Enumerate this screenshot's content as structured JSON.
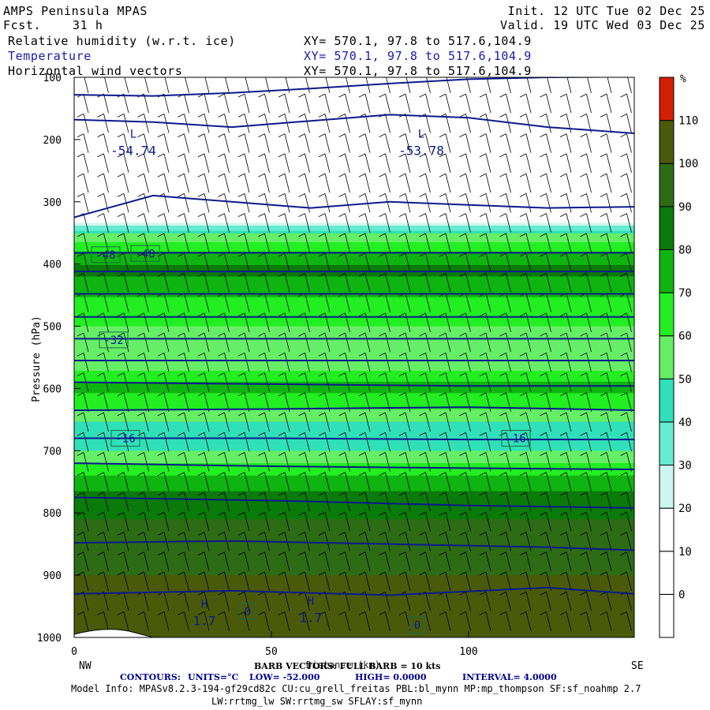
{
  "header": {
    "left_title": "AMPS Peninsula MPAS",
    "fcst_label": "Fcst.",
    "fcst_value": "31 h",
    "init": "Init. 12 UTC Tue 02 Dec 25",
    "valid": "Valid. 19 UTC Wed 03 Dec 25",
    "fields": [
      {
        "name": "Relative humidity (w.r.t. ice)",
        "range": "XY= 570.1, 97.8 to 517.6,104.9"
      },
      {
        "name": "Temperature",
        "range": "XY= 570.1, 97.8 to 517.6,104.9"
      },
      {
        "name": "Horizontal wind vectors",
        "range": "XY= 570.1, 97.8 to 517.6,104.9"
      }
    ]
  },
  "colors": {
    "contour_line": "#0a1a8c",
    "label_box": "#1a6a4a",
    "terrain": "#ffffff",
    "barbs": "#000000"
  },
  "chart_data": {
    "type": "heatmap",
    "title": "AMPS Peninsula MPAS",
    "ylabel": "Pressure (hPa)",
    "xlabel": "Distance (km)",
    "x_start_label": "NW",
    "x_end_label": "SE",
    "xlim": [
      0,
      142
    ],
    "ylim": [
      1000,
      100
    ],
    "xticks": [
      0,
      50,
      100
    ],
    "yticks": [
      100,
      200,
      300,
      400,
      500,
      600,
      700,
      800,
      900,
      1000
    ],
    "colorbar": {
      "unit": "%",
      "levels": [
        0,
        10,
        20,
        30,
        40,
        50,
        60,
        70,
        80,
        90,
        100,
        110
      ],
      "colors": [
        "#ffffff",
        "#ffffff",
        "#ffffff",
        "#ccf7ee",
        "#66ecd0",
        "#30e0b8",
        "#66ee66",
        "#22ee22",
        "#10b410",
        "#0a7a0a",
        "#2d6b15",
        "#4a5a0a",
        "#d42000"
      ]
    },
    "rh_layers": [
      {
        "p": 100,
        "rh": 10
      },
      {
        "p": 250,
        "rh": 10
      },
      {
        "p": 330,
        "rh": 15
      },
      {
        "p": 355,
        "rh": 55
      },
      {
        "p": 385,
        "rh": 72
      },
      {
        "p": 410,
        "rh": 85
      },
      {
        "p": 440,
        "rh": 72
      },
      {
        "p": 480,
        "rh": 65
      },
      {
        "p": 520,
        "rh": 55
      },
      {
        "p": 560,
        "rh": 50
      },
      {
        "p": 595,
        "rh": 75
      },
      {
        "p": 620,
        "rh": 65
      },
      {
        "p": 660,
        "rh": 45
      },
      {
        "p": 700,
        "rh": 50
      },
      {
        "p": 740,
        "rh": 70
      },
      {
        "p": 790,
        "rh": 88
      },
      {
        "p": 850,
        "rh": 95
      },
      {
        "p": 900,
        "rh": 100
      },
      {
        "p": 1000,
        "rh": 104
      }
    ],
    "temperature_contours": {
      "units": "°C",
      "low": -52.0,
      "high": 0.0,
      "interval": 4.0,
      "lines": [
        {
          "x": [
            0,
            20,
            40,
            60,
            80,
            100,
            120,
            142
          ],
          "p": [
            128,
            130,
            125,
            118,
            110,
            103,
            100,
            99
          ]
        },
        {
          "x": [
            0,
            20,
            40,
            60,
            80,
            100,
            120,
            142
          ],
          "p": [
            168,
            172,
            180,
            170,
            160,
            165,
            180,
            190
          ]
        },
        {
          "x": [
            0,
            20,
            40,
            60,
            80,
            100,
            120,
            142
          ],
          "p": [
            325,
            290,
            300,
            310,
            300,
            305,
            310,
            308
          ]
        },
        {
          "x": [
            0,
            142
          ],
          "p": [
            382,
            382
          ]
        },
        {
          "x": [
            0,
            142
          ],
          "p": [
            412,
            412
          ]
        },
        {
          "x": [
            0,
            142
          ],
          "p": [
            448,
            448
          ]
        },
        {
          "x": [
            0,
            142
          ],
          "p": [
            485,
            485
          ]
        },
        {
          "x": [
            0,
            142
          ],
          "p": [
            520,
            520
          ]
        },
        {
          "x": [
            0,
            142
          ],
          "p": [
            555,
            555
          ]
        },
        {
          "x": [
            0,
            50,
            100,
            142
          ],
          "p": [
            590,
            593,
            596,
            596
          ]
        },
        {
          "x": [
            0,
            50,
            100,
            142
          ],
          "p": [
            635,
            633,
            630,
            635
          ]
        },
        {
          "x": [
            0,
            50,
            100,
            142
          ],
          "p": [
            680,
            680,
            682,
            682
          ]
        },
        {
          "x": [
            0,
            50,
            100,
            142
          ],
          "p": [
            720,
            725,
            728,
            730
          ]
        },
        {
          "x": [
            0,
            50,
            100,
            142
          ],
          "p": [
            775,
            780,
            788,
            792
          ]
        },
        {
          "x": [
            0,
            40,
            80,
            120,
            142
          ],
          "p": [
            848,
            845,
            850,
            855,
            860
          ]
        },
        {
          "x": [
            0,
            40,
            80,
            120,
            142
          ],
          "p": [
            930,
            925,
            932,
            920,
            930
          ]
        }
      ],
      "labels": [
        {
          "x": 8,
          "p": 385,
          "text": "-48"
        },
        {
          "x": 18,
          "p": 383,
          "text": "-48"
        },
        {
          "x": 10,
          "p": 522,
          "text": "-32"
        },
        {
          "x": 13,
          "p": 680,
          "text": "-16"
        },
        {
          "x": 112,
          "p": 680,
          "text": "-16"
        },
        {
          "x": 44,
          "p": 958,
          "text": "0"
        },
        {
          "x": 87,
          "p": 980,
          "text": "0"
        }
      ],
      "extrema": [
        {
          "x": 15,
          "p": 215,
          "symbol": "L",
          "value": "-54.74"
        },
        {
          "x": 88,
          "p": 215,
          "symbol": "L",
          "value": "-53.78"
        },
        {
          "x": 33,
          "p": 970,
          "symbol": "H",
          "value": "1.7"
        },
        {
          "x": 60,
          "p": 965,
          "symbol": "H",
          "value": "1.7"
        }
      ]
    }
  },
  "footer": {
    "barb_info": "BARB VECTORS: FULL BARB = 10 kts",
    "axis_xlabel": "Distance (km)",
    "contours_label": "CONTOURS:",
    "units": "UNITS=°C",
    "low": "LOW= -52.000",
    "high": "HIGH= 0.0000",
    "interval": "INTERVAL= 4.0000",
    "model_info_1": "Model Info: MPASv8.2.3-194-gf29cd82c CU:cu_grell_freitas PBL:bl_mynn MP:mp_thompson SF:sf_noahmp 2.7",
    "model_info_2": "LW:rrtmg_lw SW:rrtmg_sw SFLAY:sf_mynn"
  }
}
